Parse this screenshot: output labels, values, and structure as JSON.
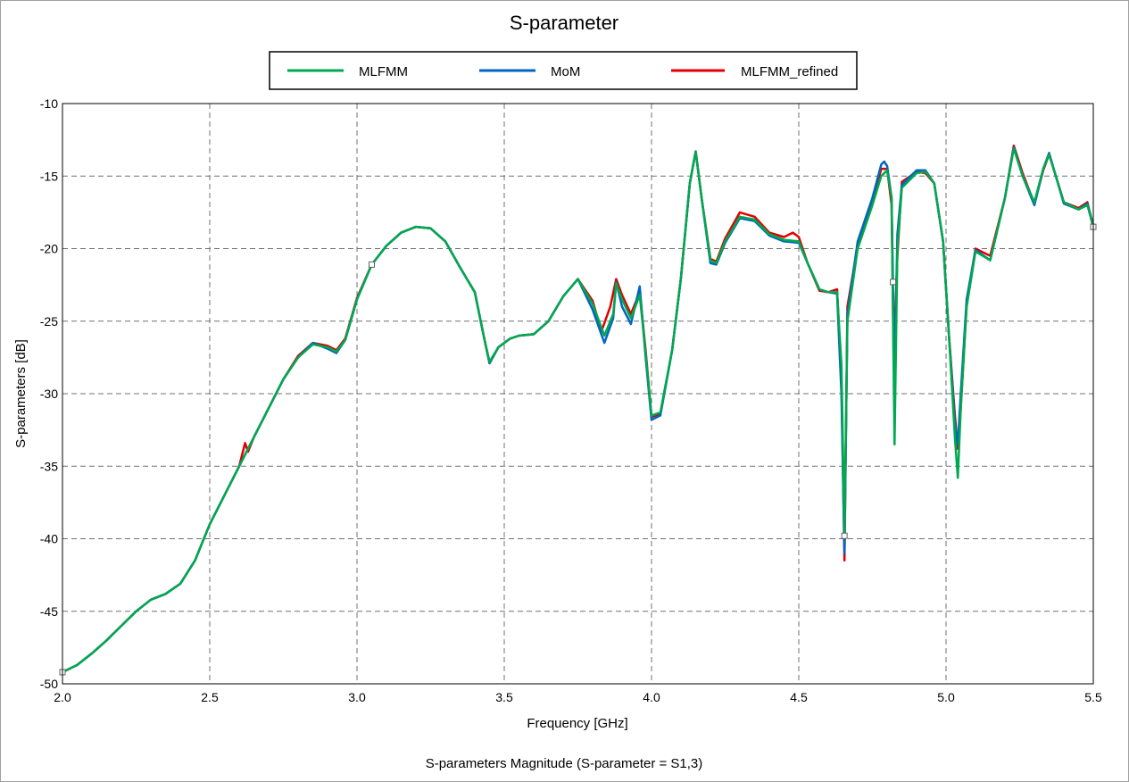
{
  "chart_data": {
    "type": "line",
    "title": "S-parameter",
    "xlabel": "Frequency [GHz]",
    "ylabel": "S-parameters [dB]",
    "caption": "S-parameters Magnitude (S-parameter = S1,3)",
    "xlim": [
      2.0,
      5.5
    ],
    "ylim": [
      -50,
      -10
    ],
    "x_ticks": [
      2.0,
      2.5,
      3.0,
      3.5,
      4.0,
      4.5,
      5.0,
      5.5
    ],
    "x_tick_labels": [
      "2.0",
      "2.5",
      "3.0",
      "3.5",
      "4.0",
      "4.5",
      "5.0",
      "5.5"
    ],
    "y_ticks": [
      -10,
      -15,
      -20,
      -25,
      -30,
      -35,
      -40,
      -45,
      -50
    ],
    "y_tick_labels": [
      "-10",
      "-15",
      "-20",
      "-25",
      "-30",
      "-35",
      "-40",
      "-45",
      "-50"
    ],
    "grid": true,
    "legend_position": "top-center",
    "series": [
      {
        "name": "MLFMM",
        "color": "#00a84f",
        "points": [
          [
            2.0,
            -49.2
          ],
          [
            2.05,
            -48.7
          ],
          [
            2.1,
            -47.9
          ],
          [
            2.15,
            -47.0
          ],
          [
            2.2,
            -46.0
          ],
          [
            2.25,
            -45.0
          ],
          [
            2.3,
            -44.2
          ],
          [
            2.35,
            -43.8
          ],
          [
            2.4,
            -43.1
          ],
          [
            2.45,
            -41.5
          ],
          [
            2.5,
            -39.0
          ],
          [
            2.55,
            -37.0
          ],
          [
            2.6,
            -35.0
          ],
          [
            2.65,
            -33.0
          ],
          [
            2.7,
            -31.0
          ],
          [
            2.75,
            -29.0
          ],
          [
            2.8,
            -27.5
          ],
          [
            2.85,
            -26.6
          ],
          [
            2.9,
            -26.8
          ],
          [
            2.93,
            -27.1
          ],
          [
            2.96,
            -26.3
          ],
          [
            3.0,
            -23.5
          ],
          [
            3.05,
            -21.1
          ],
          [
            3.1,
            -19.8
          ],
          [
            3.15,
            -18.9
          ],
          [
            3.2,
            -18.5
          ],
          [
            3.25,
            -18.6
          ],
          [
            3.3,
            -19.5
          ],
          [
            3.35,
            -21.3
          ],
          [
            3.4,
            -23.0
          ],
          [
            3.43,
            -26.0
          ],
          [
            3.45,
            -27.8
          ],
          [
            3.48,
            -26.8
          ],
          [
            3.52,
            -26.2
          ],
          [
            3.55,
            -26.0
          ],
          [
            3.6,
            -25.9
          ],
          [
            3.65,
            -25.0
          ],
          [
            3.7,
            -23.3
          ],
          [
            3.75,
            -22.1
          ],
          [
            3.8,
            -23.8
          ],
          [
            3.84,
            -26.0
          ],
          [
            3.87,
            -24.5
          ],
          [
            3.88,
            -22.4
          ],
          [
            3.9,
            -23.5
          ],
          [
            3.93,
            -24.8
          ],
          [
            3.96,
            -23.2
          ],
          [
            3.98,
            -27.2
          ],
          [
            4.0,
            -31.5
          ],
          [
            4.03,
            -31.3
          ],
          [
            4.07,
            -27.0
          ],
          [
            4.1,
            -22.0
          ],
          [
            4.13,
            -15.5
          ],
          [
            4.15,
            -13.3
          ],
          [
            4.17,
            -16.5
          ],
          [
            4.2,
            -20.8
          ],
          [
            4.22,
            -21.0
          ],
          [
            4.25,
            -19.5
          ],
          [
            4.3,
            -17.8
          ],
          [
            4.35,
            -18.0
          ],
          [
            4.4,
            -19.0
          ],
          [
            4.45,
            -19.4
          ],
          [
            4.5,
            -19.5
          ],
          [
            4.53,
            -21.0
          ],
          [
            4.57,
            -22.8
          ],
          [
            4.6,
            -23.0
          ],
          [
            4.63,
            -23.0
          ],
          [
            4.645,
            -28.0
          ],
          [
            4.655,
            -39.8
          ],
          [
            4.665,
            -25.0
          ],
          [
            4.7,
            -20.0
          ],
          [
            4.75,
            -17.0
          ],
          [
            4.78,
            -15.0
          ],
          [
            4.8,
            -14.6
          ],
          [
            4.815,
            -16.5
          ],
          [
            4.825,
            -33.5
          ],
          [
            4.835,
            -20.0
          ],
          [
            4.85,
            -15.8
          ],
          [
            4.9,
            -14.8
          ],
          [
            4.93,
            -14.7
          ],
          [
            4.96,
            -15.5
          ],
          [
            4.99,
            -19.5
          ],
          [
            5.01,
            -26.0
          ],
          [
            5.03,
            -33.0
          ],
          [
            5.04,
            -35.8
          ],
          [
            5.05,
            -31.0
          ],
          [
            5.07,
            -24.0
          ],
          [
            5.1,
            -20.2
          ],
          [
            5.15,
            -20.8
          ],
          [
            5.2,
            -16.5
          ],
          [
            5.23,
            -13.1
          ],
          [
            5.26,
            -15.0
          ],
          [
            5.3,
            -16.8
          ],
          [
            5.33,
            -14.5
          ],
          [
            5.35,
            -13.5
          ],
          [
            5.4,
            -16.8
          ],
          [
            5.45,
            -17.3
          ],
          [
            5.48,
            -17.0
          ],
          [
            5.5,
            -18.5
          ]
        ]
      },
      {
        "name": "MoM",
        "color": "#0066c0",
        "points": [
          [
            2.0,
            -49.2
          ],
          [
            2.05,
            -48.7
          ],
          [
            2.1,
            -47.9
          ],
          [
            2.15,
            -47.0
          ],
          [
            2.2,
            -46.0
          ],
          [
            2.25,
            -45.0
          ],
          [
            2.3,
            -44.2
          ],
          [
            2.35,
            -43.8
          ],
          [
            2.4,
            -43.1
          ],
          [
            2.45,
            -41.5
          ],
          [
            2.5,
            -39.0
          ],
          [
            2.55,
            -37.0
          ],
          [
            2.6,
            -35.0
          ],
          [
            2.65,
            -33.0
          ],
          [
            2.7,
            -31.0
          ],
          [
            2.75,
            -29.0
          ],
          [
            2.8,
            -27.5
          ],
          [
            2.85,
            -26.5
          ],
          [
            2.9,
            -26.9
          ],
          [
            2.93,
            -27.2
          ],
          [
            2.96,
            -26.3
          ],
          [
            3.0,
            -23.5
          ],
          [
            3.05,
            -21.1
          ],
          [
            3.1,
            -19.8
          ],
          [
            3.15,
            -18.9
          ],
          [
            3.2,
            -18.5
          ],
          [
            3.25,
            -18.6
          ],
          [
            3.3,
            -19.5
          ],
          [
            3.35,
            -21.3
          ],
          [
            3.4,
            -23.0
          ],
          [
            3.43,
            -26.0
          ],
          [
            3.45,
            -27.9
          ],
          [
            3.48,
            -26.8
          ],
          [
            3.52,
            -26.2
          ],
          [
            3.55,
            -26.0
          ],
          [
            3.6,
            -25.9
          ],
          [
            3.65,
            -25.0
          ],
          [
            3.7,
            -23.3
          ],
          [
            3.75,
            -22.1
          ],
          [
            3.8,
            -24.2
          ],
          [
            3.84,
            -26.5
          ],
          [
            3.87,
            -24.8
          ],
          [
            3.88,
            -22.3
          ],
          [
            3.9,
            -24.0
          ],
          [
            3.93,
            -25.2
          ],
          [
            3.96,
            -22.6
          ],
          [
            3.98,
            -27.5
          ],
          [
            4.0,
            -31.8
          ],
          [
            4.03,
            -31.5
          ],
          [
            4.07,
            -27.0
          ],
          [
            4.1,
            -22.0
          ],
          [
            4.13,
            -15.5
          ],
          [
            4.15,
            -13.3
          ],
          [
            4.17,
            -16.5
          ],
          [
            4.2,
            -21.0
          ],
          [
            4.22,
            -21.1
          ],
          [
            4.25,
            -19.6
          ],
          [
            4.3,
            -17.9
          ],
          [
            4.35,
            -18.1
          ],
          [
            4.4,
            -19.1
          ],
          [
            4.45,
            -19.5
          ],
          [
            4.5,
            -19.6
          ],
          [
            4.53,
            -21.0
          ],
          [
            4.57,
            -22.8
          ],
          [
            4.6,
            -23.0
          ],
          [
            4.63,
            -23.1
          ],
          [
            4.645,
            -30.0
          ],
          [
            4.655,
            -41.0
          ],
          [
            4.665,
            -24.5
          ],
          [
            4.7,
            -19.5
          ],
          [
            4.75,
            -16.5
          ],
          [
            4.78,
            -14.2
          ],
          [
            4.79,
            -14.0
          ],
          [
            4.8,
            -14.3
          ],
          [
            4.815,
            -16.5
          ],
          [
            4.825,
            -29.0
          ],
          [
            4.835,
            -19.0
          ],
          [
            4.85,
            -15.6
          ],
          [
            4.9,
            -14.6
          ],
          [
            4.93,
            -14.6
          ],
          [
            4.96,
            -15.5
          ],
          [
            4.99,
            -19.5
          ],
          [
            5.01,
            -26.0
          ],
          [
            5.03,
            -32.0
          ],
          [
            5.04,
            -33.5
          ],
          [
            5.05,
            -30.0
          ],
          [
            5.07,
            -23.5
          ],
          [
            5.1,
            -20.1
          ],
          [
            5.15,
            -20.8
          ],
          [
            5.2,
            -16.5
          ],
          [
            5.23,
            -13.0
          ],
          [
            5.26,
            -15.0
          ],
          [
            5.3,
            -17.0
          ],
          [
            5.33,
            -14.5
          ],
          [
            5.35,
            -13.4
          ],
          [
            5.4,
            -16.9
          ],
          [
            5.45,
            -17.3
          ],
          [
            5.48,
            -16.9
          ],
          [
            5.5,
            -18.4
          ]
        ]
      },
      {
        "name": "MLFMM_refined",
        "color": "#e00000",
        "points": [
          [
            2.0,
            -49.2
          ],
          [
            2.05,
            -48.7
          ],
          [
            2.1,
            -47.9
          ],
          [
            2.15,
            -47.0
          ],
          [
            2.2,
            -46.0
          ],
          [
            2.25,
            -45.0
          ],
          [
            2.3,
            -44.2
          ],
          [
            2.35,
            -43.8
          ],
          [
            2.4,
            -43.1
          ],
          [
            2.45,
            -41.5
          ],
          [
            2.5,
            -39.0
          ],
          [
            2.55,
            -37.0
          ],
          [
            2.6,
            -35.0
          ],
          [
            2.62,
            -33.4
          ],
          [
            2.63,
            -34.0
          ],
          [
            2.65,
            -33.0
          ],
          [
            2.7,
            -31.0
          ],
          [
            2.75,
            -29.0
          ],
          [
            2.8,
            -27.4
          ],
          [
            2.85,
            -26.5
          ],
          [
            2.9,
            -26.7
          ],
          [
            2.93,
            -27.0
          ],
          [
            2.96,
            -26.2
          ],
          [
            3.0,
            -23.4
          ],
          [
            3.05,
            -21.1
          ],
          [
            3.1,
            -19.8
          ],
          [
            3.15,
            -18.9
          ],
          [
            3.2,
            -18.5
          ],
          [
            3.25,
            -18.6
          ],
          [
            3.3,
            -19.5
          ],
          [
            3.35,
            -21.3
          ],
          [
            3.4,
            -23.0
          ],
          [
            3.43,
            -26.0
          ],
          [
            3.45,
            -27.9
          ],
          [
            3.48,
            -26.8
          ],
          [
            3.52,
            -26.2
          ],
          [
            3.55,
            -26.0
          ],
          [
            3.6,
            -25.9
          ],
          [
            3.65,
            -25.0
          ],
          [
            3.7,
            -23.3
          ],
          [
            3.75,
            -22.1
          ],
          [
            3.8,
            -23.6
          ],
          [
            3.83,
            -25.7
          ],
          [
            3.86,
            -24.0
          ],
          [
            3.88,
            -22.1
          ],
          [
            3.9,
            -23.2
          ],
          [
            3.93,
            -24.5
          ],
          [
            3.96,
            -23.0
          ],
          [
            3.98,
            -27.0
          ],
          [
            4.0,
            -31.6
          ],
          [
            4.03,
            -31.4
          ],
          [
            4.07,
            -27.0
          ],
          [
            4.1,
            -22.0
          ],
          [
            4.13,
            -15.5
          ],
          [
            4.15,
            -13.3
          ],
          [
            4.17,
            -16.5
          ],
          [
            4.2,
            -20.7
          ],
          [
            4.22,
            -20.9
          ],
          [
            4.25,
            -19.3
          ],
          [
            4.3,
            -17.5
          ],
          [
            4.35,
            -17.8
          ],
          [
            4.4,
            -18.9
          ],
          [
            4.45,
            -19.2
          ],
          [
            4.48,
            -18.9
          ],
          [
            4.5,
            -19.2
          ],
          [
            4.53,
            -21.0
          ],
          [
            4.57,
            -22.9
          ],
          [
            4.6,
            -23.0
          ],
          [
            4.63,
            -22.8
          ],
          [
            4.645,
            -29.0
          ],
          [
            4.655,
            -41.5
          ],
          [
            4.665,
            -24.0
          ],
          [
            4.7,
            -19.8
          ],
          [
            4.75,
            -16.8
          ],
          [
            4.78,
            -14.5
          ],
          [
            4.8,
            -14.5
          ],
          [
            4.815,
            -17.0
          ],
          [
            4.822,
            -27.5
          ],
          [
            4.835,
            -20.5
          ],
          [
            4.85,
            -15.4
          ],
          [
            4.9,
            -14.7
          ],
          [
            4.93,
            -14.8
          ],
          [
            4.96,
            -15.5
          ],
          [
            4.99,
            -19.5
          ],
          [
            5.01,
            -26.0
          ],
          [
            5.03,
            -31.5
          ],
          [
            5.04,
            -33.8
          ],
          [
            5.05,
            -31.0
          ],
          [
            5.07,
            -23.8
          ],
          [
            5.1,
            -20.0
          ],
          [
            5.15,
            -20.5
          ],
          [
            5.2,
            -16.5
          ],
          [
            5.23,
            -12.9
          ],
          [
            5.26,
            -14.8
          ],
          [
            5.3,
            -16.9
          ],
          [
            5.33,
            -14.6
          ],
          [
            5.35,
            -13.5
          ],
          [
            5.4,
            -16.8
          ],
          [
            5.45,
            -17.2
          ],
          [
            5.48,
            -16.8
          ],
          [
            5.5,
            -18.6
          ]
        ]
      }
    ],
    "markers": [
      [
        2.0,
        -49.2
      ],
      [
        3.05,
        -21.1
      ],
      [
        4.655,
        -39.8
      ],
      [
        4.82,
        -22.3
      ],
      [
        5.5,
        -18.5
      ]
    ]
  }
}
